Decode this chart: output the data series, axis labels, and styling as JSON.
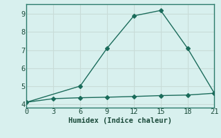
{
  "line1_x": [
    0,
    6,
    9,
    12,
    15,
    18,
    21
  ],
  "line1_y": [
    4.1,
    5.0,
    7.1,
    8.9,
    9.2,
    7.1,
    4.6
  ],
  "line2_x": [
    0,
    3,
    6,
    9,
    12,
    15,
    18,
    21
  ],
  "line2_y": [
    4.1,
    4.3,
    4.35,
    4.38,
    4.42,
    4.47,
    4.5,
    4.6
  ],
  "line_color": "#1a6b5a",
  "bg_color": "#d8f0ee",
  "grid_color": "#c8dcd8",
  "xlabel": "Humidex (Indice chaleur)",
  "xlim": [
    0,
    21
  ],
  "ylim": [
    3.8,
    9.55
  ],
  "xticks": [
    0,
    3,
    6,
    9,
    12,
    15,
    18,
    21
  ],
  "yticks": [
    4,
    5,
    6,
    7,
    8,
    9
  ],
  "marker": "D",
  "marker_size": 3,
  "line_width": 1.0,
  "spine_color": "#2a7a6a",
  "tick_color": "#1a4a3a",
  "xlabel_fontsize": 7.5,
  "tick_fontsize": 7.5
}
